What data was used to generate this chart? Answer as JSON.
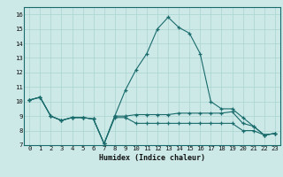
{
  "xlabel": "Humidex (Indice chaleur)",
  "ylabel": "",
  "bg_color": "#cce9e8",
  "grid_color": "#aad4d2",
  "line_color": "#1a6b6b",
  "xlim": [
    -0.5,
    23.5
  ],
  "ylim": [
    7,
    16.5
  ],
  "xticks": [
    0,
    1,
    2,
    3,
    4,
    5,
    6,
    7,
    8,
    9,
    10,
    11,
    12,
    13,
    14,
    15,
    16,
    17,
    18,
    19,
    20,
    21,
    22,
    23
  ],
  "yticks": [
    7,
    8,
    9,
    10,
    11,
    12,
    13,
    14,
    15,
    16
  ],
  "series": [
    [
      10.1,
      10.3,
      9.0,
      8.7,
      8.9,
      8.9,
      8.8,
      7.1,
      9.0,
      10.8,
      12.2,
      13.3,
      15.0,
      15.8,
      15.1,
      14.7,
      13.3,
      10.0,
      9.5,
      9.5,
      8.9,
      8.3,
      7.7,
      7.8
    ],
    [
      10.1,
      10.3,
      9.0,
      8.7,
      8.9,
      8.9,
      8.8,
      7.1,
      9.0,
      9.0,
      9.1,
      9.1,
      9.1,
      9.1,
      9.2,
      9.2,
      9.2,
      9.2,
      9.2,
      9.3,
      8.5,
      8.3,
      7.7,
      7.8
    ],
    [
      10.1,
      10.3,
      9.0,
      8.7,
      8.9,
      8.9,
      8.8,
      7.1,
      8.9,
      8.9,
      8.5,
      8.5,
      8.5,
      8.5,
      8.5,
      8.5,
      8.5,
      8.5,
      8.5,
      8.5,
      8.0,
      8.0,
      7.7,
      7.8
    ]
  ],
  "xlabel_fontsize": 6.0,
  "tick_fontsize": 5.2
}
